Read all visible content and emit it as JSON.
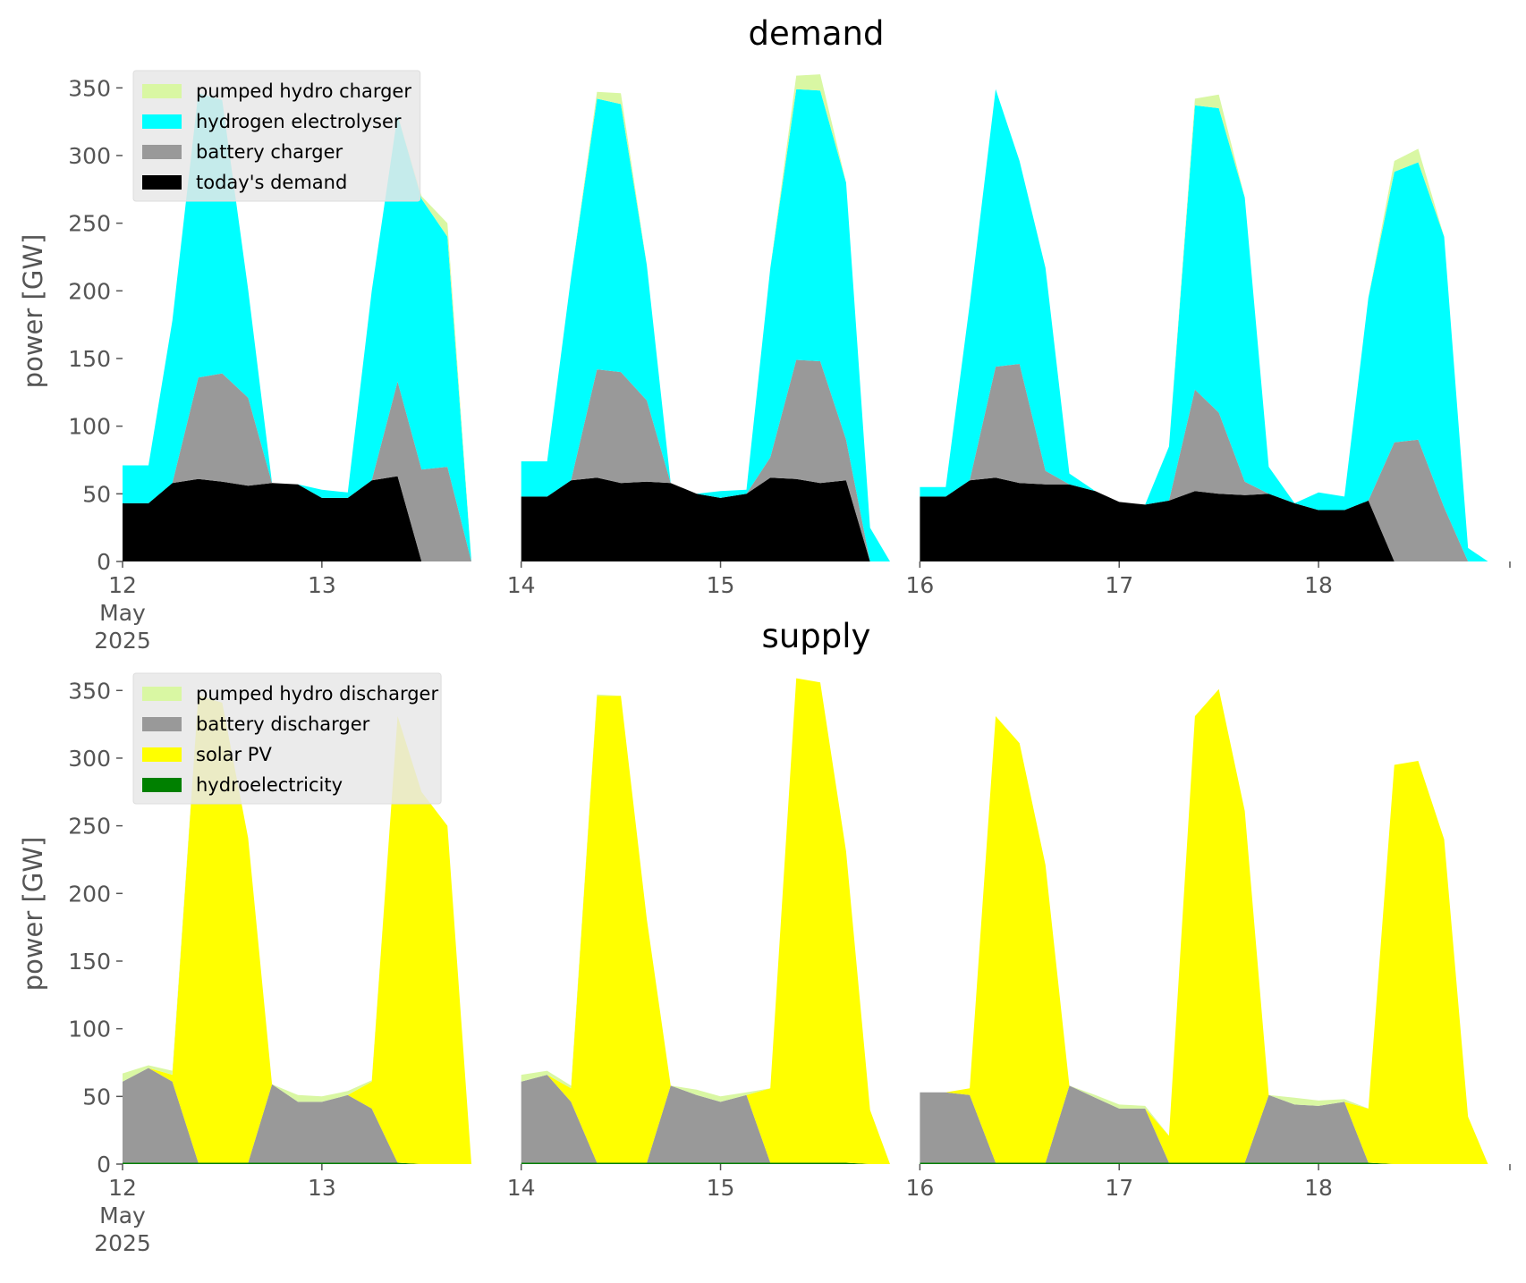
{
  "chart_data": [
    {
      "type": "area",
      "stacked": true,
      "title": "demand",
      "xlabel": "",
      "ylabel": "power [GW]",
      "ylim": [
        0,
        370
      ],
      "yticks": [
        0,
        50,
        100,
        150,
        200,
        250,
        300,
        350
      ],
      "xlim": [
        0,
        6.96
      ],
      "x_unit": "days since start of 12 May 2025",
      "xticks": [
        {
          "day": 0,
          "label": "12",
          "sub": [
            "May",
            "2025"
          ]
        },
        {
          "day": 1,
          "label": "13"
        },
        {
          "day": 2,
          "label": "14"
        },
        {
          "day": 3,
          "label": "15"
        },
        {
          "day": 4,
          "label": "16"
        },
        {
          "day": 5,
          "label": "17"
        },
        {
          "day": 6,
          "label": "18"
        }
      ],
      "legend_position": "top-left",
      "grid": false,
      "gaps": [
        [
          1.88,
          1.98
        ],
        [
          3.88,
          3.98
        ]
      ],
      "x": [
        0.0,
        0.13,
        0.25,
        0.38,
        0.5,
        0.63,
        0.75,
        0.88,
        1.0,
        1.13,
        1.25,
        1.38,
        1.5,
        1.63,
        1.75,
        1.85,
        2.0,
        2.13,
        2.25,
        2.38,
        2.5,
        2.63,
        2.75,
        2.88,
        3.0,
        3.13,
        3.25,
        3.38,
        3.5,
        3.63,
        3.75,
        3.85,
        4.0,
        4.13,
        4.25,
        4.38,
        4.5,
        4.63,
        4.75,
        4.88,
        5.0,
        5.13,
        5.25,
        5.38,
        5.5,
        5.63,
        5.75,
        5.88,
        6.0,
        6.13,
        6.25,
        6.38,
        6.5,
        6.63,
        6.75,
        6.85
      ],
      "series": [
        {
          "name": "today's demand",
          "color": "#000000",
          "values": [
            43,
            43,
            58,
            61,
            59,
            56,
            58,
            57,
            47,
            47,
            60,
            63,
            0,
            0,
            0,
            0,
            48,
            48,
            60,
            62,
            58,
            59,
            58,
            50,
            47,
            50,
            62,
            61,
            58,
            60,
            0,
            0,
            48,
            48,
            60,
            62,
            58,
            57,
            57,
            52,
            44,
            42,
            45,
            52,
            50,
            49,
            50,
            43,
            38,
            38,
            45,
            0,
            0,
            0,
            0,
            0
          ]
        },
        {
          "name": "battery charger",
          "color": "#999999",
          "values": [
            0,
            0,
            0,
            75,
            80,
            65,
            0,
            0,
            0,
            0,
            0,
            70,
            68,
            70,
            0,
            0,
            0,
            0,
            0,
            80,
            82,
            60,
            0,
            0,
            0,
            0,
            15,
            88,
            90,
            30,
            0,
            0,
            0,
            0,
            0,
            82,
            88,
            10,
            0,
            0,
            0,
            0,
            0,
            75,
            60,
            10,
            0,
            0,
            0,
            0,
            0,
            88,
            90,
            40,
            0,
            0
          ]
        },
        {
          "name": "hydrogen electrolyser",
          "color": "#00ffff",
          "values": [
            28,
            28,
            120,
            210,
            202,
            80,
            0,
            0,
            6,
            4,
            140,
            197,
            200,
            170,
            0,
            0,
            26,
            26,
            150,
            200,
            198,
            100,
            0,
            0,
            5,
            3,
            140,
            200,
            200,
            190,
            25,
            0,
            7,
            7,
            130,
            205,
            150,
            150,
            8,
            0,
            0,
            0,
            40,
            210,
            225,
            210,
            20,
            0,
            13,
            10,
            150,
            200,
            205,
            200,
            10,
            0
          ]
        },
        {
          "name": "pumped hydro charger",
          "color": "#d9f7a3",
          "values": [
            0,
            0,
            0,
            0,
            0,
            0,
            0,
            0,
            0,
            0,
            0,
            0,
            2,
            10,
            0,
            0,
            0,
            0,
            0,
            5,
            8,
            0,
            0,
            0,
            0,
            0,
            0,
            10,
            12,
            0,
            0,
            0,
            0,
            0,
            0,
            0,
            0,
            0,
            0,
            0,
            0,
            0,
            0,
            5,
            10,
            0,
            0,
            0,
            0,
            0,
            0,
            8,
            10,
            0,
            0,
            0
          ]
        }
      ],
      "legend_order": [
        "pumped hydro charger",
        "hydrogen electrolyser",
        "battery charger",
        "today's demand"
      ]
    },
    {
      "type": "area",
      "stacked": true,
      "title": "supply",
      "xlabel": "",
      "ylabel": "power [GW]",
      "ylim": [
        0,
        370
      ],
      "yticks": [
        0,
        50,
        100,
        150,
        200,
        250,
        300,
        350
      ],
      "xlim": [
        0,
        6.96
      ],
      "x_unit": "days since start of 12 May 2025",
      "xticks": [
        {
          "day": 0,
          "label": "12",
          "sub": [
            "May",
            "2025"
          ]
        },
        {
          "day": 1,
          "label": "13"
        },
        {
          "day": 2,
          "label": "14"
        },
        {
          "day": 3,
          "label": "15"
        },
        {
          "day": 4,
          "label": "16"
        },
        {
          "day": 5,
          "label": "17"
        },
        {
          "day": 6,
          "label": "18"
        }
      ],
      "legend_position": "top-left",
      "grid": false,
      "gaps": [
        [
          1.88,
          1.98
        ],
        [
          3.88,
          3.98
        ]
      ],
      "x": [
        0.0,
        0.13,
        0.25,
        0.38,
        0.5,
        0.63,
        0.75,
        0.88,
        1.0,
        1.13,
        1.25,
        1.38,
        1.5,
        1.63,
        1.75,
        1.85,
        2.0,
        2.13,
        2.25,
        2.38,
        2.5,
        2.63,
        2.75,
        2.88,
        3.0,
        3.13,
        3.25,
        3.38,
        3.5,
        3.63,
        3.75,
        3.85,
        4.0,
        4.13,
        4.25,
        4.38,
        4.5,
        4.63,
        4.75,
        4.88,
        5.0,
        5.13,
        5.25,
        5.38,
        5.5,
        5.63,
        5.75,
        5.88,
        6.0,
        6.13,
        6.25,
        6.38,
        6.5,
        6.63,
        6.75,
        6.85
      ],
      "series": [
        {
          "name": "hydroelectricity",
          "color": "#008000",
          "values": [
            1,
            1,
            1,
            1,
            1,
            1,
            1,
            1,
            1,
            1,
            1,
            1,
            0,
            0,
            0,
            0,
            1,
            1,
            1,
            1,
            1,
            1,
            1,
            1,
            1,
            1,
            1,
            1,
            1,
            1,
            0,
            0,
            1,
            1,
            1,
            1,
            1,
            1,
            1,
            1,
            1,
            1,
            1,
            1,
            1,
            1,
            1,
            1,
            1,
            1,
            1,
            0,
            0,
            0,
            0,
            0
          ]
        },
        {
          "name": "battery discharger",
          "color": "#999999",
          "values": [
            60,
            70,
            60,
            0,
            0,
            0,
            58,
            45,
            45,
            50,
            40,
            0,
            0,
            0,
            0,
            0,
            60,
            65,
            45,
            0,
            0,
            0,
            57,
            50,
            45,
            50,
            0,
            0,
            0,
            0,
            0,
            0,
            52,
            52,
            50,
            0,
            0,
            0,
            57,
            48,
            40,
            40,
            0,
            0,
            0,
            0,
            50,
            43,
            42,
            45,
            0,
            0,
            0,
            0,
            0,
            0
          ]
        },
        {
          "name": "solar PV",
          "color": "#ffff00",
          "values": [
            0,
            0,
            5,
            345,
            340,
            240,
            0,
            0,
            0,
            0,
            20,
            330,
            275,
            250,
            0,
            0,
            0,
            0,
            10,
            345,
            345,
            180,
            0,
            0,
            0,
            0,
            55,
            358,
            355,
            230,
            40,
            0,
            0,
            0,
            5,
            330,
            310,
            220,
            0,
            0,
            0,
            0,
            20,
            330,
            350,
            260,
            0,
            0,
            0,
            0,
            40,
            295,
            298,
            240,
            35,
            0
          ]
        },
        {
          "name": "pumped hydro discharger",
          "color": "#d9f7a3",
          "values": [
            6,
            2,
            3,
            1,
            0,
            0,
            0,
            5,
            4,
            3,
            1,
            0,
            0,
            0,
            0,
            0,
            5,
            3,
            2,
            1,
            0,
            0,
            0,
            4,
            4,
            2,
            0,
            0,
            0,
            0,
            0,
            0,
            0,
            0,
            0,
            0,
            0,
            0,
            0,
            2,
            3,
            2,
            0,
            0,
            0,
            0,
            0,
            5,
            4,
            2,
            0,
            0,
            0,
            0,
            0,
            0
          ]
        }
      ],
      "legend_order": [
        "pumped hydro discharger",
        "battery discharger",
        "solar PV",
        "hydroelectricity"
      ]
    }
  ]
}
